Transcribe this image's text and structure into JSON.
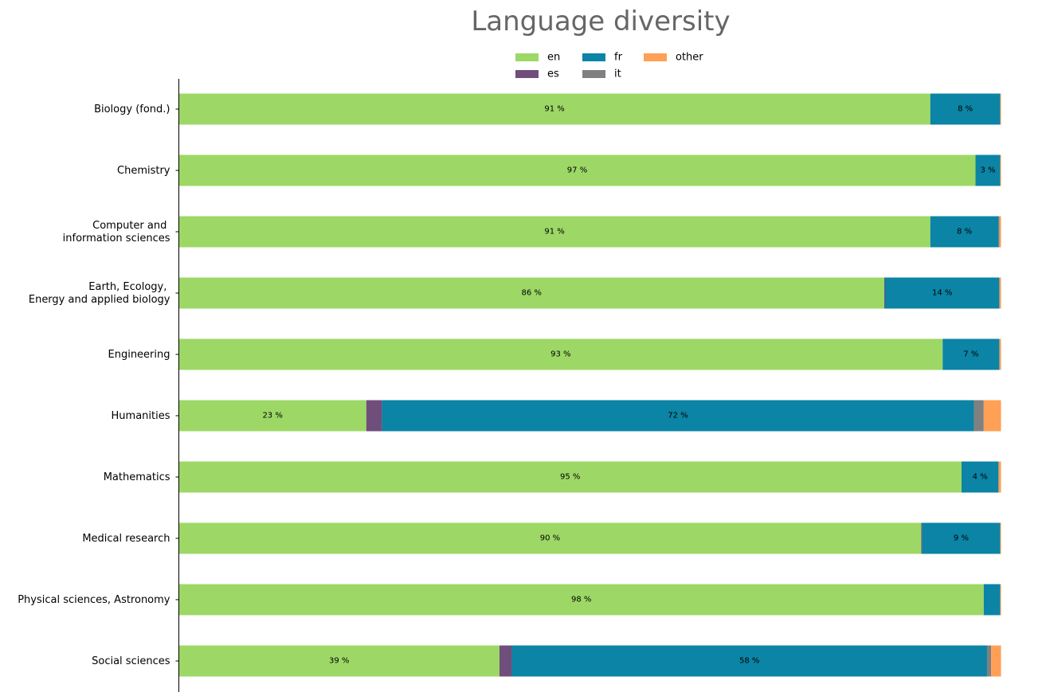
{
  "chart_data": {
    "type": "bar",
    "orientation": "horizontal",
    "stacked": true,
    "normalized": true,
    "title": "Language diversity",
    "xlabel": "",
    "ylabel": "",
    "xlim": [
      0,
      1
    ],
    "grid": false,
    "legend_position": "top-center",
    "categories": [
      "Biology (fond.)",
      "Chemistry",
      "Computer and \ninformation sciences",
      "Earth, Ecology, \nEnergy and applied biology",
      "Engineering",
      "Humanities",
      "Mathematics",
      "Medical research",
      "Physical sciences, Astronomy",
      "Social sciences"
    ],
    "series": [
      {
        "name": "en",
        "color": "#9dd866",
        "values": [
          0.914,
          0.969,
          0.914,
          0.858,
          0.929,
          0.228,
          0.952,
          0.903,
          0.979,
          0.39
        ]
      },
      {
        "name": "es",
        "color": "#6f4e7c",
        "values": [
          0.0,
          0.0,
          0.0,
          0.001,
          0.0,
          0.019,
          0.0,
          0.001,
          0.0,
          0.015
        ]
      },
      {
        "name": "fr",
        "color": "#0b84a5",
        "values": [
          0.085,
          0.03,
          0.083,
          0.139,
          0.069,
          0.72,
          0.045,
          0.095,
          0.02,
          0.578
        ]
      },
      {
        "name": "it",
        "color": "#808080",
        "values": [
          0.0,
          0.0,
          0.001,
          0.0,
          0.0,
          0.012,
          0.0,
          0.0,
          0.0,
          0.005
        ]
      },
      {
        "name": "other",
        "color": "#ffa056",
        "values": [
          0.001,
          0.001,
          0.002,
          0.002,
          0.002,
          0.021,
          0.003,
          0.001,
          0.001,
          0.012
        ]
      }
    ],
    "data_labels": [
      [
        "91 %",
        "",
        "8 %",
        "",
        ""
      ],
      [
        "97 %",
        "",
        "3 %",
        "",
        ""
      ],
      [
        "91 %",
        "",
        "8 %",
        "",
        ""
      ],
      [
        "86 %",
        "",
        "14 %",
        "",
        ""
      ],
      [
        "93 %",
        "",
        "7 %",
        "",
        ""
      ],
      [
        "23 %",
        "",
        "72 %",
        "",
        ""
      ],
      [
        "95 %",
        "",
        "4 %",
        "",
        ""
      ],
      [
        "90 %",
        "",
        "9 %",
        "",
        ""
      ],
      [
        "98 %",
        "",
        "",
        "",
        ""
      ],
      [
        "39 %",
        "",
        "58 %",
        "",
        ""
      ]
    ]
  }
}
